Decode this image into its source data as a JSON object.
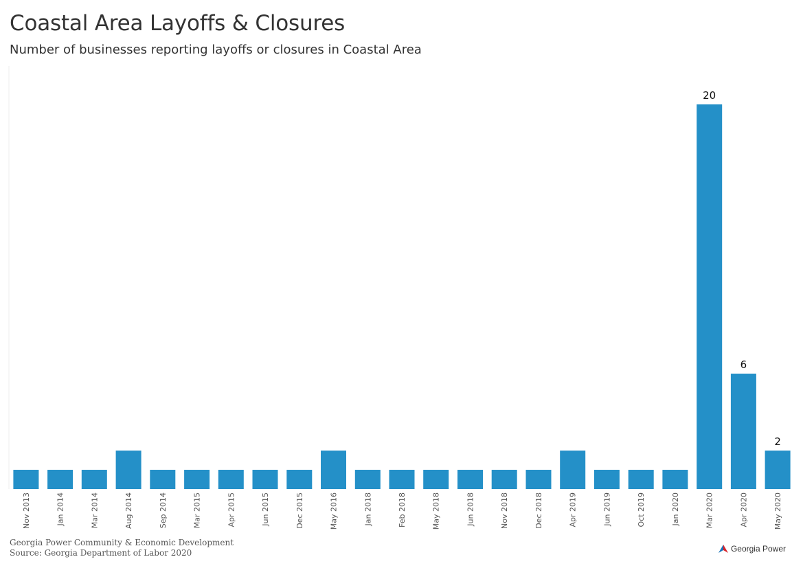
{
  "header": {
    "title": "Coastal Area Layoffs & Closures",
    "subtitle": "Number of businesses reporting layoffs or closures in Coastal Area"
  },
  "footer": {
    "credit": "Georgia Power Community & Economic Development",
    "source": "Source: Georgia Department of Labor 2020",
    "logo_text": "Georgia Power"
  },
  "colors": {
    "bar": "#2490c8",
    "logo_red": "#d8232a",
    "logo_blue": "#1a75bb"
  },
  "chart_data": {
    "type": "bar",
    "title": "Coastal Area Layoffs & Closures",
    "subtitle": "Number of businesses reporting layoffs or closures in Coastal Area",
    "categories": [
      "Nov 2013",
      "Jan 2014",
      "Mar 2014",
      "Aug 2014",
      "Sep 2014",
      "Mar 2015",
      "Apr 2015",
      "Jun 2015",
      "Dec 2015",
      "May 2016",
      "Jan 2018",
      "Feb 2018",
      "May 2018",
      "Jun 2018",
      "Nov 2018",
      "Dec 2018",
      "Apr 2019",
      "Jun 2019",
      "Oct 2019",
      "Jan 2020",
      "Mar 2020",
      "Apr 2020",
      "May 2020"
    ],
    "values": [
      1,
      1,
      1,
      2,
      1,
      1,
      1,
      1,
      1,
      2,
      1,
      1,
      1,
      1,
      1,
      1,
      2,
      1,
      1,
      1,
      20,
      6,
      2
    ],
    "data_labels": {
      "20": "20",
      "21": "6",
      "22": "2"
    },
    "ylim": [
      0,
      20
    ],
    "grid": false,
    "xlabel": "",
    "ylabel": ""
  }
}
